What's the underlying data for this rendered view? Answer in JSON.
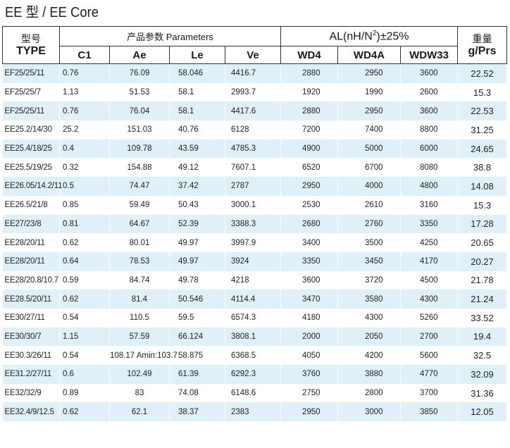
{
  "title": "EE 型  / EE Core",
  "header": {
    "type_cn": "型号",
    "type_en": "TYPE",
    "params_label": "产品参数  Parameters",
    "al_label": "AL(nH/N",
    "al_sup": "2",
    "al_suffix": ")±25%",
    "weight_cn": "重量",
    "weight_en": "g/Prs",
    "columns": {
      "c1": "C1",
      "ae": "Ae",
      "le": "Le",
      "ve": "Ve",
      "wd4": "WD4",
      "wd4a": "WD4A",
      "wdw33": "WDW33"
    }
  },
  "rows": [
    {
      "type": "EF25/25/11",
      "c1": "0.76",
      "ae": "76.09",
      "le": "58.046",
      "ve": "4416.7",
      "wd4": "2880",
      "wd4a": "2950",
      "wdw33": "3600",
      "weight": "22.52"
    },
    {
      "type": "EF25/25/7",
      "c1": "1.13",
      "ae": "51.53",
      "le": "58.1",
      "ve": "2993.7",
      "wd4": "1920",
      "wd4a": "1990",
      "wdw33": "2600",
      "weight": "15.3"
    },
    {
      "type": "EF25/25/11",
      "c1": "0.76",
      "ae": "76.04",
      "le": "58.1",
      "ve": "4417.6",
      "wd4": "2880",
      "wd4a": "2950",
      "wdw33": "3600",
      "weight": "22.53"
    },
    {
      "type": "EE25.2/14/30",
      "c1": "25.2",
      "ae": "151.03",
      "le": "40.76",
      "ve": "6128",
      "wd4": "7200",
      "wd4a": "7400",
      "wdw33": "8800",
      "weight": "31.25"
    },
    {
      "type": "EE25.4/18/25",
      "c1": "0.4",
      "ae": "109.78",
      "le": "43.59",
      "ve": "4785.3",
      "wd4": "4900",
      "wd4a": "5000",
      "wdw33": "6000",
      "weight": "24.65"
    },
    {
      "type": "EE25.5/19/25",
      "c1": "0.32",
      "ae": "154.88",
      "le": "49.12",
      "ve": "7607.1",
      "wd4": "6520",
      "wd4a": "6700",
      "wdw33": "8080",
      "weight": "38.8"
    },
    {
      "type": "EE26.05/14.2/11",
      "c1": "0.5",
      "ae": "74.47",
      "le": "37.42",
      "ve": "2787",
      "wd4": "2950",
      "wd4a": "4000",
      "wdw33": "4800",
      "weight": "14.08"
    },
    {
      "type": "EE26.5/21/8",
      "c1": "0.85",
      "ae": "59.49",
      "le": "50.43",
      "ve": "3000.1",
      "wd4": "2530",
      "wd4a": "2610",
      "wdw33": "3160",
      "weight": "15.3"
    },
    {
      "type": "EE27/23/8",
      "c1": "0.81",
      "ae": "64.67",
      "le": "52.39",
      "ve": "3388.3",
      "wd4": "2680",
      "wd4a": "2760",
      "wdw33": "3350",
      "weight": "17.28"
    },
    {
      "type": "EE28/20/11",
      "c1": "0.62",
      "ae": "80.01",
      "le": "49.97",
      "ve": "3997.9",
      "wd4": "3400",
      "wd4a": "3500",
      "wdw33": "4250",
      "weight": "20.65"
    },
    {
      "type": "EE28/20/11",
      "c1": "0.64",
      "ae": "78.53",
      "le": "49.97",
      "ve": "3924",
      "wd4": "3350",
      "wd4a": "3450",
      "wdw33": "4170",
      "weight": "20.27"
    },
    {
      "type": "EE28/20.8/10.7",
      "c1": "0.59",
      "ae": "84.74",
      "le": "49.78",
      "ve": "4218",
      "wd4": "3600",
      "wd4a": "3720",
      "wdw33": "4500",
      "weight": "21.78"
    },
    {
      "type": "EE28.5/20/11",
      "c1": "0.62",
      "ae": "81.4",
      "le": "50.546",
      "ve": "4114.4",
      "wd4": "3470",
      "wd4a": "3580",
      "wdw33": "4300",
      "weight": "21.24"
    },
    {
      "type": "EE30/27/11",
      "c1": "0.54",
      "ae": "110.5",
      "le": "59.5",
      "ve": "6574.3",
      "wd4": "4180",
      "wd4a": "4300",
      "wdw33": "5260",
      "weight": "33.52"
    },
    {
      "type": "EE30/30/7",
      "c1": "1.15",
      "ae": "57.59",
      "le": "66.124",
      "ve": "3808.1",
      "wd4": "2000",
      "wd4a": "2050",
      "wdw33": "2700",
      "weight": "19.4"
    },
    {
      "type": "EE30.3/26/11",
      "c1": "0.54",
      "ae": "108.17 Amin:103.7",
      "le": "58.875",
      "ve": "6368.5",
      "wd4": "4050",
      "wd4a": "4200",
      "wdw33": "5600",
      "weight": "32.5"
    },
    {
      "type": "EE31.2/27/11",
      "c1": "0.6",
      "ae": "102.49",
      "le": "61.39",
      "ve": "6292.3",
      "wd4": "3760",
      "wd4a": "3880",
      "wdw33": "4770",
      "weight": "32.09"
    },
    {
      "type": "EE32/32/9",
      "c1": "0.89",
      "ae": "83",
      "le": "74.08",
      "ve": "6148.6",
      "wd4": "2750",
      "wd4a": "2800",
      "wdw33": "3700",
      "weight": "31.36"
    },
    {
      "type": "EE32.4/9/12.5",
      "c1": "0.62",
      "ae": "62.1",
      "le": "38.37",
      "ve": "2383",
      "wd4": "2950",
      "wd4a": "3000",
      "wdw33": "3850",
      "weight": "12.05"
    }
  ]
}
